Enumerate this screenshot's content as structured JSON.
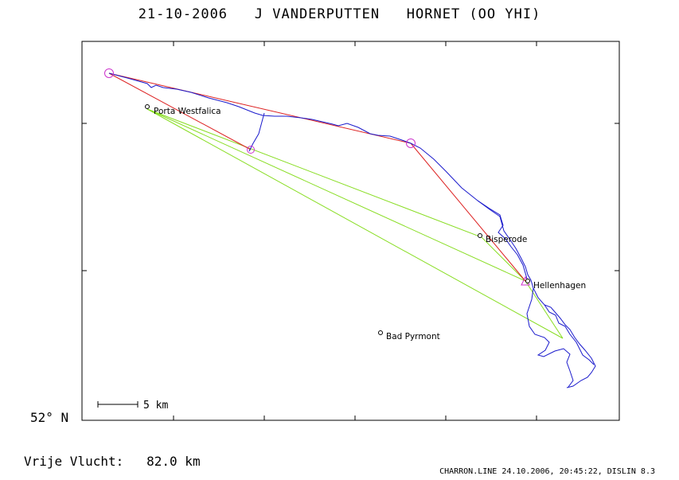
{
  "header": {
    "date": "21-10-2006",
    "pilot": "J VANDERPUTTEN",
    "glider": "HORNET (OO YHI)"
  },
  "flight": {
    "label": "Vrije Vlucht:",
    "distance": "82.0 km"
  },
  "footer": "CHARRON.LINE 24.10.2006, 20:45:22, DISLIN 8.3",
  "latitude_label": "52° N",
  "scale": {
    "label": "5 km",
    "km": 5
  },
  "places": [
    {
      "name": "Porta Westfalica"
    },
    {
      "name": "Bisperode"
    },
    {
      "name": "Hellenhagen"
    },
    {
      "name": "Bad Pyrmont"
    }
  ],
  "colors": {
    "track": "#1a1acc",
    "task": "#dd2222",
    "optimized": "#88dd22",
    "turnpoint": "#cc33cc",
    "frame": "#000000"
  },
  "icons": {
    "turnpoint": "circle-marker",
    "start": "triangle-marker",
    "place": "small-circle-marker"
  }
}
